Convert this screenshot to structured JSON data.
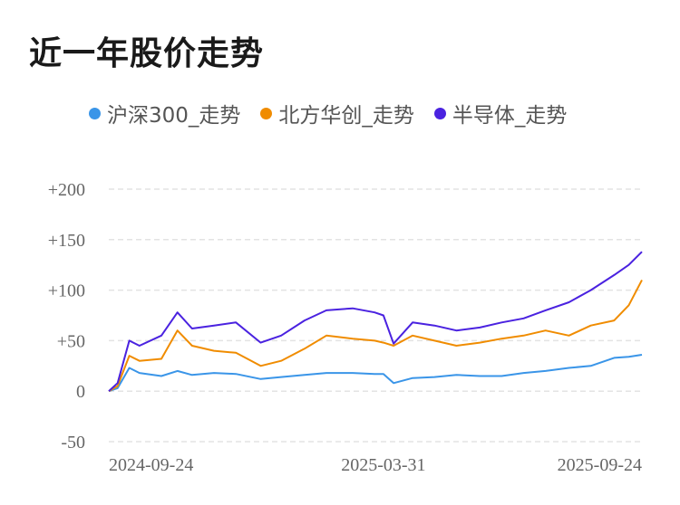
{
  "title": "近一年股价走势",
  "chart_data": {
    "type": "line",
    "title": "近一年股价走势",
    "legend_position": "top",
    "grid": true,
    "ylim": [
      -50,
      200
    ],
    "y_ticks": [
      -50,
      0,
      50,
      100,
      150,
      200
    ],
    "y_tick_labels": [
      "-50",
      "0",
      "+50",
      "+100",
      "+150",
      "+200"
    ],
    "x_tick_labels": [
      "2024-09-24",
      "2025-03-31",
      "2025-09-24"
    ],
    "x": [
      "2024-09-24",
      "2024-09-30",
      "2024-10-08",
      "2024-10-15",
      "2024-10-30",
      "2024-11-10",
      "2024-11-20",
      "2024-12-05",
      "2024-12-20",
      "2025-01-06",
      "2025-01-20",
      "2025-02-05",
      "2025-02-20",
      "2025-03-10",
      "2025-03-25",
      "2025-03-31",
      "2025-04-07",
      "2025-04-20",
      "2025-05-05",
      "2025-05-20",
      "2025-06-05",
      "2025-06-20",
      "2025-07-05",
      "2025-07-20",
      "2025-08-05",
      "2025-08-20",
      "2025-09-05",
      "2025-09-15",
      "2025-09-24"
    ],
    "series": [
      {
        "name": "沪深300_走势",
        "color": "#3a95e8",
        "values": [
          0,
          3,
          23,
          18,
          15,
          20,
          16,
          18,
          17,
          12,
          14,
          16,
          18,
          18,
          17,
          17,
          8,
          13,
          14,
          16,
          15,
          15,
          18,
          20,
          23,
          25,
          33,
          34,
          36
        ]
      },
      {
        "name": "北方华创_走势",
        "color": "#f08c00",
        "values": [
          0,
          5,
          35,
          30,
          32,
          60,
          45,
          40,
          38,
          25,
          30,
          42,
          55,
          52,
          50,
          48,
          45,
          55,
          50,
          45,
          48,
          52,
          55,
          60,
          55,
          65,
          70,
          85,
          110
        ]
      },
      {
        "name": "半导体_走势",
        "color": "#4a22e0",
        "values": [
          0,
          8,
          50,
          45,
          55,
          78,
          62,
          65,
          68,
          48,
          55,
          70,
          80,
          82,
          78,
          75,
          47,
          68,
          65,
          60,
          63,
          68,
          72,
          80,
          88,
          100,
          115,
          125,
          138
        ]
      }
    ]
  }
}
